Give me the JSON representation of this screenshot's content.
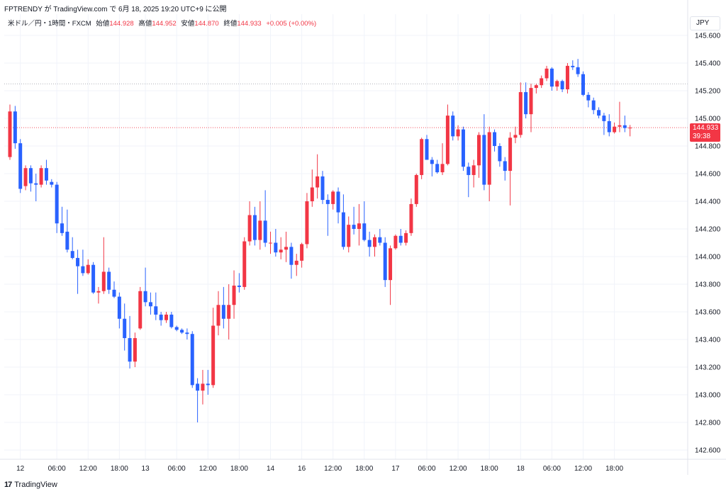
{
  "header": {
    "publish_line": "FPTRENDY が TradingView.com で 6月 18, 2025 19:20 UTC+9 に公開"
  },
  "legend": {
    "symbol": "米ドル／円・1時間・FXCM",
    "open_label": "始値",
    "open_value": "144.928",
    "high_label": "高値",
    "high_value": "144.952",
    "low_label": "安値",
    "low_value": "144.870",
    "close_label": "終値",
    "close_value": "144.933",
    "change": "+0.005 (+0.00%)"
  },
  "currency_label": "JPY",
  "price_tag": {
    "price": "144.933",
    "countdown": "39:38"
  },
  "footer": {
    "logo": "17",
    "brand": "TradingView"
  },
  "colors": {
    "up": "#f23645",
    "down": "#2962ff",
    "grid": "#f0f3fa",
    "text": "#131722"
  },
  "chart_data": {
    "type": "candlestick",
    "interval": "1h",
    "ylim": [
      142.6,
      145.7
    ],
    "y_ticks": [
      "145.600",
      "145.400",
      "145.200",
      "145.000",
      "144.800",
      "144.600",
      "144.400",
      "144.200",
      "144.000",
      "143.800",
      "143.600",
      "143.400",
      "143.200",
      "143.000",
      "142.800",
      "142.600"
    ],
    "x_ticks": [
      {
        "label": "12",
        "i": 2
      },
      {
        "label": "06:00",
        "i": 9
      },
      {
        "label": "12:00",
        "i": 15
      },
      {
        "label": "18:00",
        "i": 21
      },
      {
        "label": "13",
        "i": 26
      },
      {
        "label": "06:00",
        "i": 32
      },
      {
        "label": "12:00",
        "i": 38
      },
      {
        "label": "18:00",
        "i": 44
      },
      {
        "label": "14",
        "i": 50
      },
      {
        "label": "16",
        "i": 56
      },
      {
        "label": "12:00",
        "i": 62
      },
      {
        "label": "18:00",
        "i": 68
      },
      {
        "label": "17",
        "i": 74
      },
      {
        "label": "06:00",
        "i": 80
      },
      {
        "label": "12:00",
        "i": 86
      },
      {
        "label": "18:00",
        "i": 92
      },
      {
        "label": "18",
        "i": 98
      },
      {
        "label": "06:00",
        "i": 104
      },
      {
        "label": "12:00",
        "i": 110
      },
      {
        "label": "18:00",
        "i": 116
      }
    ],
    "last_price": 144.933,
    "reference_line": 145.25,
    "candles": [
      {
        "o": 144.72,
        "h": 145.1,
        "l": 144.7,
        "c": 145.05
      },
      {
        "o": 145.05,
        "h": 145.09,
        "l": 144.78,
        "c": 144.82
      },
      {
        "o": 144.82,
        "h": 144.85,
        "l": 144.46,
        "c": 144.49
      },
      {
        "o": 144.51,
        "h": 144.66,
        "l": 144.48,
        "c": 144.64
      },
      {
        "o": 144.64,
        "h": 144.66,
        "l": 144.47,
        "c": 144.53
      },
      {
        "o": 144.53,
        "h": 144.6,
        "l": 144.4,
        "c": 144.52
      },
      {
        "o": 144.52,
        "h": 144.66,
        "l": 144.5,
        "c": 144.64
      },
      {
        "o": 144.64,
        "h": 144.7,
        "l": 144.52,
        "c": 144.55
      },
      {
        "o": 144.54,
        "h": 144.56,
        "l": 144.5,
        "c": 144.52
      },
      {
        "o": 144.52,
        "h": 144.54,
        "l": 144.17,
        "c": 144.24
      },
      {
        "o": 144.24,
        "h": 144.36,
        "l": 144.15,
        "c": 144.17
      },
      {
        "o": 144.18,
        "h": 144.34,
        "l": 144.03,
        "c": 144.05
      },
      {
        "o": 144.04,
        "h": 144.14,
        "l": 143.98,
        "c": 143.99
      },
      {
        "o": 143.99,
        "h": 144.05,
        "l": 143.73,
        "c": 143.93
      },
      {
        "o": 143.93,
        "h": 144.05,
        "l": 143.86,
        "c": 143.88
      },
      {
        "o": 143.88,
        "h": 143.98,
        "l": 143.87,
        "c": 143.94
      },
      {
        "o": 143.94,
        "h": 143.96,
        "l": 143.73,
        "c": 143.74
      },
      {
        "o": 143.74,
        "h": 143.78,
        "l": 143.66,
        "c": 143.75
      },
      {
        "o": 143.75,
        "h": 144.14,
        "l": 143.73,
        "c": 143.89
      },
      {
        "o": 143.89,
        "h": 143.92,
        "l": 143.73,
        "c": 143.76
      },
      {
        "o": 143.76,
        "h": 143.82,
        "l": 143.7,
        "c": 143.71
      },
      {
        "o": 143.71,
        "h": 143.74,
        "l": 143.48,
        "c": 143.55
      },
      {
        "o": 143.55,
        "h": 143.66,
        "l": 143.32,
        "c": 143.41
      },
      {
        "o": 143.41,
        "h": 143.57,
        "l": 143.19,
        "c": 143.24
      },
      {
        "o": 143.24,
        "h": 143.45,
        "l": 143.2,
        "c": 143.41
      },
      {
        "o": 143.48,
        "h": 143.78,
        "l": 143.47,
        "c": 143.75
      },
      {
        "o": 143.75,
        "h": 143.92,
        "l": 143.64,
        "c": 143.67
      },
      {
        "o": 143.67,
        "h": 143.74,
        "l": 143.58,
        "c": 143.64
      },
      {
        "o": 143.64,
        "h": 143.74,
        "l": 143.54,
        "c": 143.58
      },
      {
        "o": 143.58,
        "h": 143.6,
        "l": 143.5,
        "c": 143.54
      },
      {
        "o": 143.54,
        "h": 143.6,
        "l": 143.52,
        "c": 143.58
      },
      {
        "o": 143.58,
        "h": 143.6,
        "l": 143.48,
        "c": 143.49
      },
      {
        "o": 143.49,
        "h": 143.5,
        "l": 143.46,
        "c": 143.47
      },
      {
        "o": 143.47,
        "h": 143.48,
        "l": 143.44,
        "c": 143.45
      },
      {
        "o": 143.45,
        "h": 143.48,
        "l": 143.4,
        "c": 143.44
      },
      {
        "o": 143.44,
        "h": 143.46,
        "l": 143.05,
        "c": 143.07
      },
      {
        "o": 143.08,
        "h": 143.12,
        "l": 142.8,
        "c": 143.03
      },
      {
        "o": 143.03,
        "h": 143.18,
        "l": 142.93,
        "c": 143.08
      },
      {
        "o": 143.08,
        "h": 143.18,
        "l": 143.0,
        "c": 143.07
      },
      {
        "o": 143.07,
        "h": 143.63,
        "l": 143.05,
        "c": 143.5
      },
      {
        "o": 143.5,
        "h": 143.75,
        "l": 143.43,
        "c": 143.65
      },
      {
        "o": 143.65,
        "h": 143.78,
        "l": 143.48,
        "c": 143.55
      },
      {
        "o": 143.55,
        "h": 143.8,
        "l": 143.4,
        "c": 143.65
      },
      {
        "o": 143.65,
        "h": 143.9,
        "l": 143.55,
        "c": 143.79
      },
      {
        "o": 143.79,
        "h": 143.88,
        "l": 143.74,
        "c": 143.78
      },
      {
        "o": 143.78,
        "h": 144.14,
        "l": 143.76,
        "c": 144.11
      },
      {
        "o": 144.11,
        "h": 144.4,
        "l": 144.08,
        "c": 144.3
      },
      {
        "o": 144.3,
        "h": 144.36,
        "l": 144.08,
        "c": 144.12
      },
      {
        "o": 144.12,
        "h": 144.4,
        "l": 144.05,
        "c": 144.26
      },
      {
        "o": 144.26,
        "h": 144.48,
        "l": 144.07,
        "c": 144.1
      },
      {
        "o": 144.1,
        "h": 144.18,
        "l": 144.02,
        "c": 144.1
      },
      {
        "o": 144.1,
        "h": 144.2,
        "l": 144.0,
        "c": 144.03
      },
      {
        "o": 144.03,
        "h": 144.14,
        "l": 143.98,
        "c": 144.05
      },
      {
        "o": 144.05,
        "h": 144.18,
        "l": 143.96,
        "c": 144.07
      },
      {
        "o": 144.07,
        "h": 144.1,
        "l": 143.84,
        "c": 143.94
      },
      {
        "o": 143.94,
        "h": 144.02,
        "l": 143.86,
        "c": 143.97
      },
      {
        "o": 143.97,
        "h": 144.1,
        "l": 143.92,
        "c": 144.09
      },
      {
        "o": 144.09,
        "h": 144.46,
        "l": 144.06,
        "c": 144.4
      },
      {
        "o": 144.4,
        "h": 144.63,
        "l": 144.36,
        "c": 144.5
      },
      {
        "o": 144.5,
        "h": 144.74,
        "l": 144.42,
        "c": 144.58
      },
      {
        "o": 144.58,
        "h": 144.62,
        "l": 144.38,
        "c": 144.41
      },
      {
        "o": 144.41,
        "h": 144.45,
        "l": 144.15,
        "c": 144.38
      },
      {
        "o": 144.38,
        "h": 144.48,
        "l": 144.34,
        "c": 144.47
      },
      {
        "o": 144.47,
        "h": 144.5,
        "l": 144.24,
        "c": 144.32
      },
      {
        "o": 144.32,
        "h": 144.45,
        "l": 144.05,
        "c": 144.07
      },
      {
        "o": 144.07,
        "h": 144.29,
        "l": 144.03,
        "c": 144.23
      },
      {
        "o": 144.23,
        "h": 144.36,
        "l": 144.16,
        "c": 144.2
      },
      {
        "o": 144.2,
        "h": 144.38,
        "l": 144.08,
        "c": 144.24
      },
      {
        "o": 144.24,
        "h": 144.4,
        "l": 144.11,
        "c": 144.12
      },
      {
        "o": 144.12,
        "h": 144.18,
        "l": 144.0,
        "c": 144.07
      },
      {
        "o": 144.07,
        "h": 144.16,
        "l": 144.0,
        "c": 144.14
      },
      {
        "o": 144.14,
        "h": 144.2,
        "l": 144.08,
        "c": 144.1
      },
      {
        "o": 144.1,
        "h": 144.14,
        "l": 143.78,
        "c": 143.83
      },
      {
        "o": 143.83,
        "h": 144.08,
        "l": 143.65,
        "c": 144.06
      },
      {
        "o": 144.06,
        "h": 144.16,
        "l": 144.05,
        "c": 144.15
      },
      {
        "o": 144.15,
        "h": 144.2,
        "l": 144.08,
        "c": 144.1
      },
      {
        "o": 144.1,
        "h": 144.19,
        "l": 144.08,
        "c": 144.17
      },
      {
        "o": 144.17,
        "h": 144.42,
        "l": 144.15,
        "c": 144.38
      },
      {
        "o": 144.38,
        "h": 144.6,
        "l": 144.36,
        "c": 144.59
      },
      {
        "o": 144.59,
        "h": 144.86,
        "l": 144.56,
        "c": 144.85
      },
      {
        "o": 144.85,
        "h": 144.88,
        "l": 144.7,
        "c": 144.7
      },
      {
        "o": 144.7,
        "h": 144.72,
        "l": 144.58,
        "c": 144.67
      },
      {
        "o": 144.67,
        "h": 144.7,
        "l": 144.6,
        "c": 144.61
      },
      {
        "o": 144.61,
        "h": 144.82,
        "l": 144.59,
        "c": 144.67
      },
      {
        "o": 144.67,
        "h": 145.1,
        "l": 144.66,
        "c": 145.02
      },
      {
        "o": 145.02,
        "h": 145.05,
        "l": 144.84,
        "c": 144.87
      },
      {
        "o": 144.87,
        "h": 144.95,
        "l": 144.84,
        "c": 144.92
      },
      {
        "o": 144.92,
        "h": 144.94,
        "l": 144.62,
        "c": 144.65
      },
      {
        "o": 144.65,
        "h": 144.68,
        "l": 144.43,
        "c": 144.59
      },
      {
        "o": 144.59,
        "h": 144.7,
        "l": 144.5,
        "c": 144.66
      },
      {
        "o": 144.66,
        "h": 144.9,
        "l": 144.57,
        "c": 144.88
      },
      {
        "o": 144.88,
        "h": 145.03,
        "l": 144.48,
        "c": 144.52
      },
      {
        "o": 144.52,
        "h": 144.94,
        "l": 144.4,
        "c": 144.9
      },
      {
        "o": 144.9,
        "h": 144.92,
        "l": 144.76,
        "c": 144.8
      },
      {
        "o": 144.8,
        "h": 144.82,
        "l": 144.65,
        "c": 144.69
      },
      {
        "o": 144.69,
        "h": 144.72,
        "l": 144.55,
        "c": 144.62
      },
      {
        "o": 144.62,
        "h": 144.9,
        "l": 144.37,
        "c": 144.86
      },
      {
        "o": 144.86,
        "h": 144.94,
        "l": 144.82,
        "c": 144.88
      },
      {
        "o": 144.88,
        "h": 145.26,
        "l": 144.86,
        "c": 145.19
      },
      {
        "o": 145.19,
        "h": 145.26,
        "l": 145.0,
        "c": 145.03
      },
      {
        "o": 145.03,
        "h": 145.25,
        "l": 144.9,
        "c": 145.22
      },
      {
        "o": 145.22,
        "h": 145.25,
        "l": 145.18,
        "c": 145.24
      },
      {
        "o": 145.24,
        "h": 145.31,
        "l": 145.22,
        "c": 145.29
      },
      {
        "o": 145.29,
        "h": 145.38,
        "l": 145.27,
        "c": 145.36
      },
      {
        "o": 145.36,
        "h": 145.37,
        "l": 145.2,
        "c": 145.23
      },
      {
        "o": 145.23,
        "h": 145.28,
        "l": 145.2,
        "c": 145.27
      },
      {
        "o": 145.27,
        "h": 145.28,
        "l": 145.19,
        "c": 145.21
      },
      {
        "o": 145.21,
        "h": 145.4,
        "l": 145.18,
        "c": 145.38
      },
      {
        "o": 145.38,
        "h": 145.42,
        "l": 145.35,
        "c": 145.37
      },
      {
        "o": 145.37,
        "h": 145.43,
        "l": 145.3,
        "c": 145.32
      },
      {
        "o": 145.32,
        "h": 145.34,
        "l": 145.16,
        "c": 145.17
      },
      {
        "o": 145.17,
        "h": 145.19,
        "l": 145.08,
        "c": 145.13
      },
      {
        "o": 145.13,
        "h": 145.15,
        "l": 145.03,
        "c": 145.06
      },
      {
        "o": 145.06,
        "h": 145.08,
        "l": 145.0,
        "c": 145.02
      },
      {
        "o": 145.02,
        "h": 145.04,
        "l": 144.88,
        "c": 144.98
      },
      {
        "o": 144.98,
        "h": 145.03,
        "l": 144.87,
        "c": 144.9
      },
      {
        "o": 144.9,
        "h": 144.97,
        "l": 144.89,
        "c": 144.94
      },
      {
        "o": 144.94,
        "h": 145.12,
        "l": 144.9,
        "c": 144.95
      },
      {
        "o": 144.95,
        "h": 145.02,
        "l": 144.9,
        "c": 144.93
      },
      {
        "o": 144.928,
        "h": 144.952,
        "l": 144.87,
        "c": 144.933
      }
    ]
  }
}
